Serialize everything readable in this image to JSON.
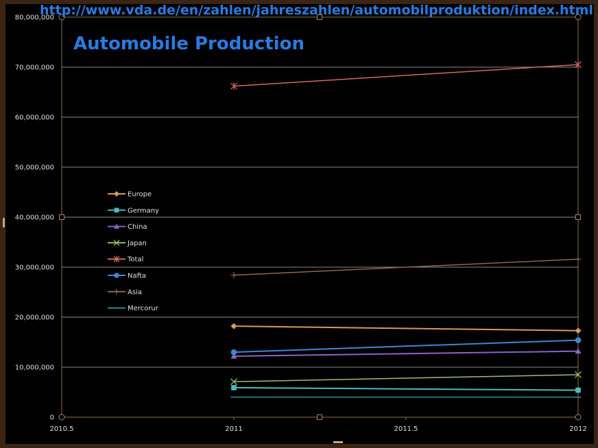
{
  "url_text": "http://www.vda.de/en/zahlen/jahreszahlen/automobilproduktion/index.html",
  "chart_data": {
    "type": "line",
    "title": "Automobile Production",
    "xlabel": "",
    "ylabel": "",
    "xlim": [
      2010.5,
      2012
    ],
    "ylim": [
      0,
      80000000
    ],
    "x_ticks": [
      2010.5,
      2011,
      2011.5,
      2012
    ],
    "x_tick_labels": [
      "2010.5",
      "2011",
      "2011.5",
      "2012"
    ],
    "y_ticks": [
      0,
      10000000,
      20000000,
      30000000,
      40000000,
      50000000,
      60000000,
      70000000,
      80000000
    ],
    "y_tick_labels": [
      "0",
      "10,000,000",
      "20,000,000",
      "30,000,000",
      "40,000,000",
      "50,000,000",
      "60,000,000",
      "70,000,000",
      "80,000,000"
    ],
    "grid": true,
    "legend_position": "left",
    "x": [
      2011,
      2012
    ],
    "series": [
      {
        "name": "Europe",
        "values": [
          18200000,
          17300000
        ],
        "color": "#d49a5c",
        "marker": "diamond"
      },
      {
        "name": "Germany",
        "values": [
          5900000,
          5400000
        ],
        "color": "#4fb8bd",
        "marker": "square"
      },
      {
        "name": "China",
        "values": [
          12200000,
          13200000
        ],
        "color": "#8a63c8",
        "marker": "triangle"
      },
      {
        "name": "Japan",
        "values": [
          7100000,
          8500000
        ],
        "color": "#9bc06a",
        "marker": "x"
      },
      {
        "name": "Total",
        "values": [
          66200000,
          70500000
        ],
        "color": "#d46a5a",
        "marker": "star"
      },
      {
        "name": "Nafta",
        "values": [
          13000000,
          15400000
        ],
        "color": "#3f86d4",
        "marker": "circle"
      },
      {
        "name": "Asia",
        "values": [
          28400000,
          31600000
        ],
        "color": "#8a6a4c",
        "marker": "plus"
      },
      {
        "name": "Mercorur",
        "values": [
          4000000,
          4000000
        ],
        "color": "#2f8a8a",
        "marker": "dash"
      }
    ]
  }
}
